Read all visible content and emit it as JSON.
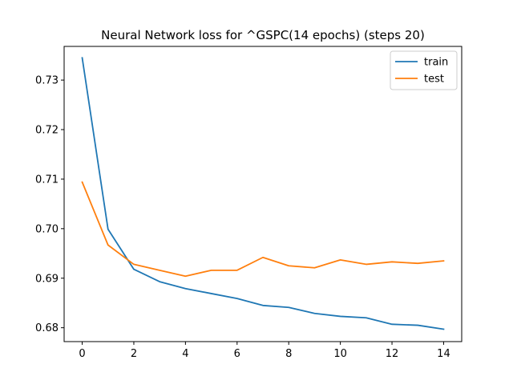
{
  "chart_data": {
    "type": "line",
    "title": "Neural Network loss for ^GSPC(14 epochs) (steps 20)",
    "xlabel": "",
    "ylabel": "",
    "xlim": [
      -0.7,
      14.7
    ],
    "ylim": [
      0.6772,
      0.7368
    ],
    "xticks": [
      0,
      2,
      4,
      6,
      8,
      10,
      12,
      14
    ],
    "xtick_labels": [
      "0",
      "2",
      "4",
      "6",
      "8",
      "10",
      "12",
      "14"
    ],
    "yticks": [
      0.68,
      0.69,
      0.7,
      0.71,
      0.72,
      0.73
    ],
    "ytick_labels": [
      "0.68",
      "0.69",
      "0.70",
      "0.71",
      "0.72",
      "0.73"
    ],
    "grid": false,
    "legend_position": "top-right",
    "x": [
      0,
      1,
      2,
      3,
      4,
      5,
      6,
      7,
      8,
      9,
      10,
      11,
      12,
      13,
      14
    ],
    "series": [
      {
        "name": "train",
        "color": "#1f77b4",
        "values": [
          0.7345,
          0.6999,
          0.6918,
          0.6893,
          0.6879,
          0.6869,
          0.6859,
          0.6845,
          0.6841,
          0.6829,
          0.6823,
          0.682,
          0.6807,
          0.6805,
          0.6797
        ]
      },
      {
        "name": "test",
        "color": "#ff7f0e",
        "values": [
          0.7094,
          0.6967,
          0.6928,
          0.6916,
          0.6904,
          0.6916,
          0.6916,
          0.6942,
          0.6925,
          0.6921,
          0.6937,
          0.6928,
          0.6933,
          0.693,
          0.6935
        ]
      }
    ]
  }
}
